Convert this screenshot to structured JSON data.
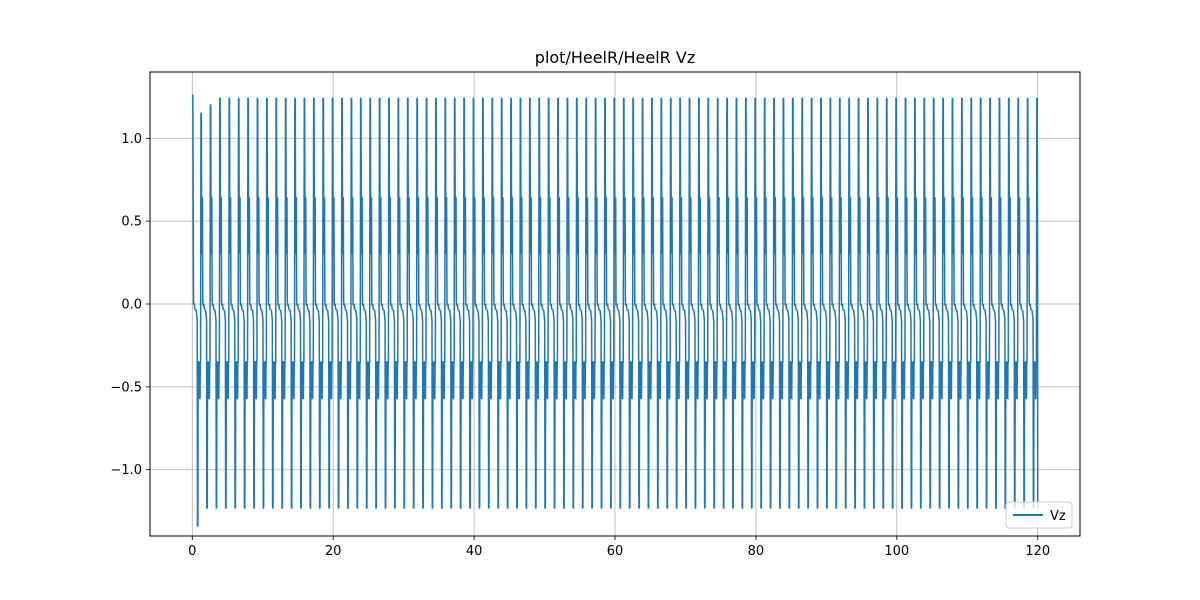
{
  "chart_data": {
    "type": "line",
    "title": "plot/HeelR/HeelR Vz",
    "xlabel": "",
    "ylabel": "",
    "xlim": [
      -6,
      126
    ],
    "ylim": [
      -1.4,
      1.4
    ],
    "xticks": [
      0,
      20,
      40,
      60,
      80,
      100,
      120
    ],
    "xtick_labels": [
      "0",
      "20",
      "40",
      "60",
      "80",
      "100",
      "120"
    ],
    "yticks": [
      -1.0,
      -0.5,
      0.0,
      0.5,
      1.0
    ],
    "ytick_labels": [
      "−1.0",
      "−0.5",
      "0.0",
      "0.5",
      "1.0"
    ],
    "grid": true,
    "legend_position": "bottom-right",
    "gait": {
      "cycle_period": 1.333,
      "first_cycle_start": 0.3,
      "t_end": 120,
      "peak_max": 1.24,
      "peak_min": -1.23,
      "secondary_max": 0.64,
      "secondary_min": -0.57,
      "shoulder": -0.35,
      "initial_spike_max": 1.26,
      "first_min": -1.34
    },
    "series": [
      {
        "name": "Vz",
        "color": "#1f77b4"
      }
    ]
  }
}
